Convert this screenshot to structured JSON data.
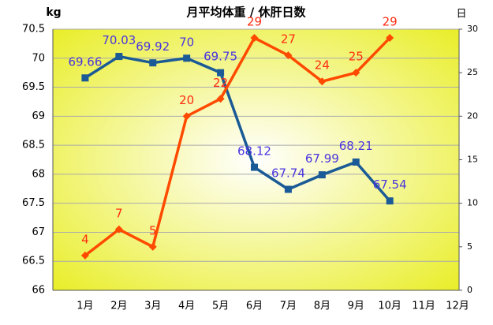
{
  "chart_data": {
    "type": "line",
    "title": "月平均体重 / 休肝日数",
    "y_label": "kg",
    "y2_label": "日",
    "categories": [
      "1月",
      "2月",
      "3月",
      "4月",
      "5月",
      "6月",
      "7月",
      "8月",
      "9月",
      "10月",
      "11月",
      "12月"
    ],
    "series": [
      {
        "name": "月平均体重",
        "color": "#1a5a96",
        "label_color": "#4a35e0",
        "marker": "square",
        "axis": "y",
        "values": [
          69.66,
          70.03,
          69.92,
          70,
          69.75,
          68.12,
          67.74,
          67.99,
          68.21,
          67.54,
          null,
          null
        ]
      },
      {
        "name": "休肝日数",
        "color": "#ff4a00",
        "label_color": "#ff2a10",
        "marker": "diamond",
        "axis": "y2",
        "values": [
          4,
          7,
          5,
          20,
          22,
          29,
          27,
          24,
          25,
          29,
          null,
          null
        ]
      }
    ],
    "ylim": [
      66,
      70.5
    ],
    "yticks": [
      66,
      66.5,
      67,
      67.5,
      68,
      68.5,
      69,
      69.5,
      70,
      70.5
    ],
    "y2lim": [
      0,
      30
    ],
    "y2ticks": [
      0,
      5,
      10,
      15,
      20,
      25,
      30
    ],
    "grid": true
  }
}
